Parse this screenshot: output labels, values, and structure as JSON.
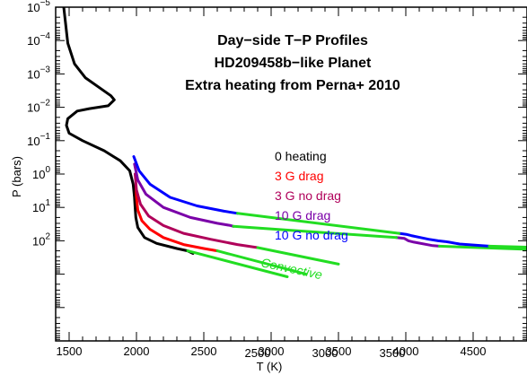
{
  "chart_data": {
    "type": "line",
    "title_lines": [
      "Day−side T−P Profiles",
      "HD209458b−like Planet",
      "Extra heating from Perna+ 2010"
    ],
    "xlabel": "T (K)",
    "ylabel": "P (bars)",
    "xlim": [
      1400,
      4900
    ],
    "ylim": [
      100000,
      1e-05
    ],
    "y_scale": "log",
    "y_inverted": true,
    "x_ticks_upper": [
      {
        "value": 1500,
        "label": "1500"
      },
      {
        "value": 2000,
        "label": "2000"
      },
      {
        "value": 2500,
        "label": "2500"
      },
      {
        "value": 3000,
        "label": "3000"
      },
      {
        "value": 3500,
        "label": "3500"
      },
      {
        "value": 4000,
        "label": "4000"
      },
      {
        "value": 4500,
        "label": "4500"
      }
    ],
    "x_ticks_lower": [
      {
        "value": 2500,
        "label": "2500"
      },
      {
        "value": 3000,
        "label": "3000"
      },
      {
        "value": 3500,
        "label": "3500"
      }
    ],
    "y_ticks": [
      {
        "value": 1e-05,
        "base": "10",
        "exp": "−5"
      },
      {
        "value": 0.0001,
        "base": "10",
        "exp": "−4"
      },
      {
        "value": 0.001,
        "base": "10",
        "exp": "−3"
      },
      {
        "value": 0.01,
        "base": "10",
        "exp": "−2"
      },
      {
        "value": 0.1,
        "base": "10",
        "exp": "−1"
      },
      {
        "value": 1,
        "base": "10",
        "exp": "0"
      },
      {
        "value": 10,
        "base": "10",
        "exp": "1"
      },
      {
        "value": 100,
        "base": "10",
        "exp": "2"
      }
    ],
    "legend": [
      {
        "label": "0 heating",
        "color": "#000000"
      },
      {
        "label": "3 G drag",
        "color": "#ff0000"
      },
      {
        "label": "3 G no drag",
        "color": "#b0005a"
      },
      {
        "label": "10 G drag",
        "color": "#7a00a8"
      },
      {
        "label": "10 G no drag",
        "color": "#0000ff"
      }
    ],
    "annotation": {
      "label": "Convective",
      "color": "#22dd22"
    },
    "convective_color": "#22dd22",
    "series": [
      {
        "color": "#000000",
        "points": [
          [
            1460,
            1e-05
          ],
          [
            1490,
            0.00012
          ],
          [
            1540,
            0.0005
          ],
          [
            1620,
            0.0013
          ],
          [
            1720,
            0.0025
          ],
          [
            1810,
            0.0045
          ],
          [
            1835,
            0.006
          ],
          [
            1790,
            0.009
          ],
          [
            1650,
            0.011
          ],
          [
            1560,
            0.013
          ],
          [
            1490,
            0.022
          ],
          [
            1480,
            0.035
          ],
          [
            1500,
            0.06
          ],
          [
            1600,
            0.1
          ],
          [
            1760,
            0.2
          ],
          [
            1880,
            0.4
          ],
          [
            1950,
            0.8
          ],
          [
            1975,
            2
          ],
          [
            1985,
            5
          ],
          [
            1990,
            10
          ],
          [
            1995,
            20
          ],
          [
            2010,
            40
          ],
          [
            2060,
            80
          ],
          [
            2150,
            120
          ],
          [
            2300,
            170
          ],
          [
            2380,
            200
          ],
          [
            2420,
            240
          ]
        ],
        "convective": [
          [
            2380,
            200
          ],
          [
            3120,
            1200
          ]
        ]
      },
      {
        "color": "#ff0000",
        "points": [
          [
            1995,
            2
          ],
          [
            2000,
            5
          ],
          [
            2010,
            12
          ],
          [
            2040,
            25
          ],
          [
            2100,
            45
          ],
          [
            2200,
            80
          ],
          [
            2350,
            130
          ],
          [
            2500,
            170
          ],
          [
            2600,
            200
          ]
        ],
        "convective": [
          [
            2600,
            200
          ],
          [
            3260,
            1000
          ]
        ]
      },
      {
        "color": "#b0005a",
        "points": [
          [
            1990,
            1
          ],
          [
            2000,
            3
          ],
          [
            2030,
            8
          ],
          [
            2090,
            18
          ],
          [
            2200,
            35
          ],
          [
            2350,
            60
          ],
          [
            2550,
            90
          ],
          [
            2750,
            130
          ],
          [
            2900,
            160
          ]
        ],
        "convective": [
          [
            2900,
            160
          ],
          [
            3500,
            500
          ]
        ]
      },
      {
        "color": "#7a00a8",
        "points": [
          [
            1985,
            0.5
          ],
          [
            2010,
            1.5
          ],
          [
            2070,
            4
          ],
          [
            2200,
            10
          ],
          [
            2400,
            20
          ],
          [
            2600,
            30
          ],
          [
            2700,
            35
          ],
          [
            2720,
            37
          ]
        ],
        "convective": [
          [
            2720,
            37
          ],
          [
            3930,
            80
          ]
        ],
        "continuation": [
          [
            3930,
            80
          ],
          [
            3990,
            85
          ],
          [
            4020,
            100
          ],
          [
            4060,
            110
          ],
          [
            4200,
            140
          ],
          [
            4250,
            145
          ]
        ],
        "convective2": [
          [
            4250,
            145
          ],
          [
            4900,
            180
          ]
        ]
      },
      {
        "color": "#0000ff",
        "points": [
          [
            1980,
            0.3
          ],
          [
            2020,
            0.8
          ],
          [
            2100,
            2
          ],
          [
            2250,
            5
          ],
          [
            2450,
            9
          ],
          [
            2650,
            13
          ],
          [
            2750,
            15
          ]
        ],
        "convective": [
          [
            2750,
            15
          ],
          [
            3950,
            60
          ]
        ],
        "continuation": [
          [
            3950,
            60
          ],
          [
            4010,
            65
          ],
          [
            4040,
            70
          ],
          [
            4110,
            80
          ],
          [
            4170,
            90
          ],
          [
            4240,
            100
          ],
          [
            4290,
            105
          ],
          [
            4320,
            110
          ],
          [
            4400,
            125
          ],
          [
            4560,
            140
          ],
          [
            4620,
            145
          ]
        ],
        "convective2": [
          [
            4620,
            145
          ],
          [
            4900,
            155
          ]
        ]
      }
    ]
  }
}
